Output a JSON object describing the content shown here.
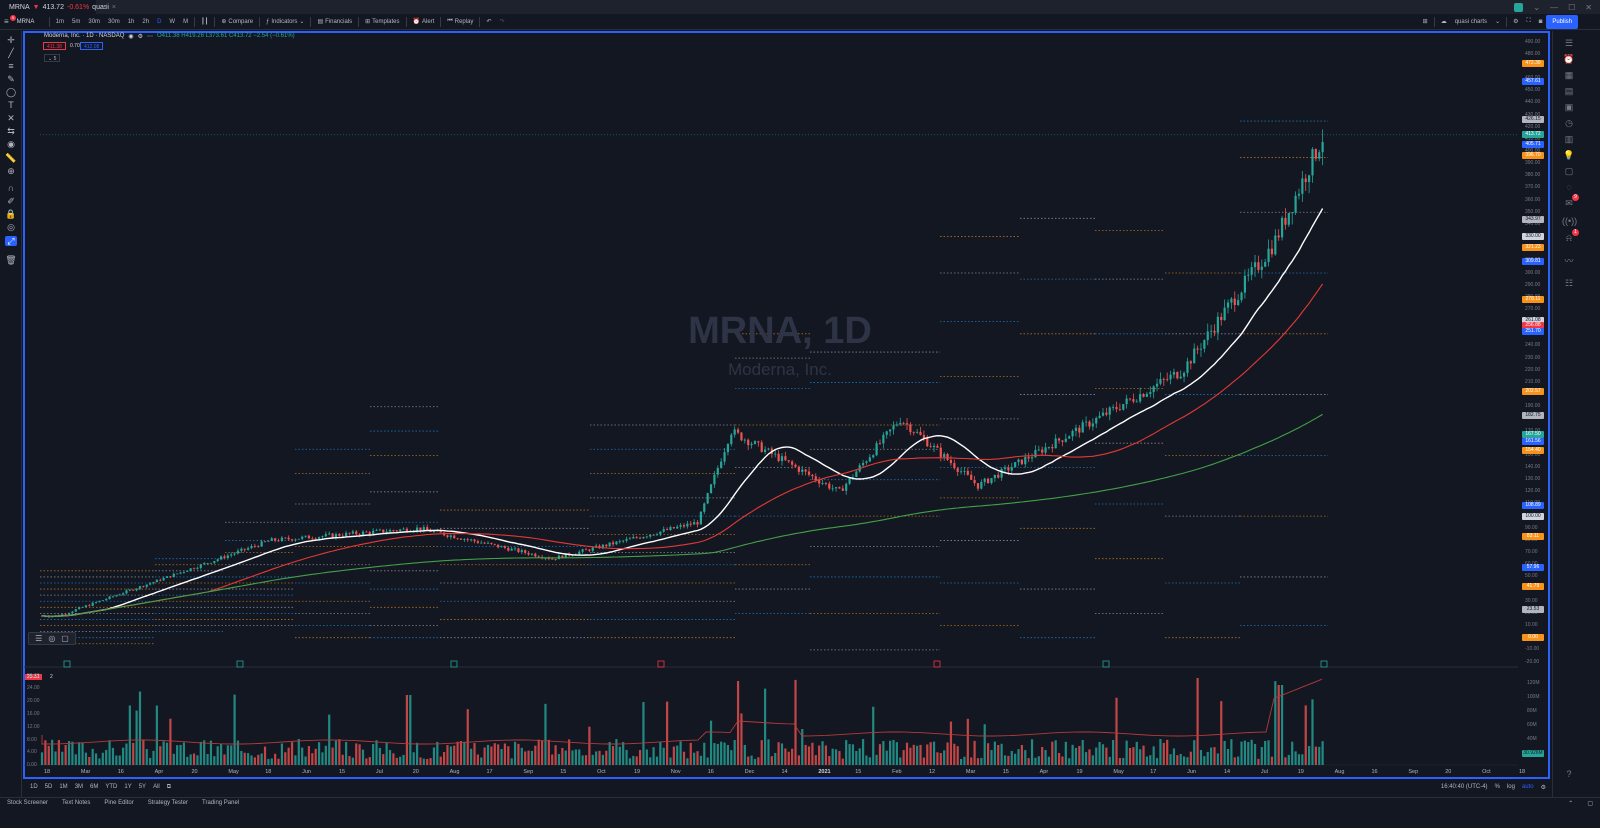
{
  "browser": {
    "tab_symbol": "MRNA",
    "tab_price": "413.72",
    "tab_change": "-0.61%",
    "tab_rest": "quasi",
    "new_tab": "+"
  },
  "toolbar": {
    "symbol": "MRNA",
    "intervals": [
      "1m",
      "5m",
      "30m",
      "30m",
      "1h",
      "2h",
      "D",
      "W",
      "M"
    ],
    "active_interval": "D",
    "compare": "Compare",
    "indicators": "Indicators",
    "financials": "Financials",
    "templates": "Templates",
    "alert": "Alert",
    "replay": "Replay",
    "layout_name": "quasi charts",
    "publish": "Publish"
  },
  "legend": {
    "title": "Moderna, Inc. · 1D · NASDAQ",
    "ohlc": "O411.38 H419.26 L373.61 C413.72 −2.54 (−0.61%)",
    "sell_price": "411.38",
    "spread": "0.70",
    "buy_price": "412.08",
    "sub": "5"
  },
  "watermark": {
    "symbol_interval": "MRNA, 1D",
    "company": "Moderna, Inc."
  },
  "price_axis": {
    "labels": [
      "490.00",
      "480.00",
      "470.00",
      "460.00",
      "450.00",
      "440.00",
      "430.00",
      "420.00",
      "410.00",
      "400.00",
      "390.00",
      "380.00",
      "370.00",
      "360.00",
      "350.00",
      "340.00",
      "330.00",
      "320.00",
      "310.00",
      "300.00",
      "290.00",
      "280.00",
      "270.00",
      "260.00",
      "250.00",
      "240.00",
      "230.00",
      "220.00",
      "210.00",
      "200.00",
      "190.00",
      "180.00",
      "170.00",
      "160.00",
      "150.00",
      "140.00",
      "130.00",
      "120.00",
      "110.00",
      "100.00",
      "90.00",
      "80.00",
      "70.00",
      "60.00",
      "50.00",
      "40.00",
      "30.00",
      "20.00",
      "10.00",
      "0.00",
      "-10.00",
      "-20.00"
    ],
    "tags": [
      {
        "text": "472.39",
        "color": "#f7931a",
        "price": 472.39
      },
      {
        "text": "457.61",
        "color": "#2962ff",
        "price": 457.61
      },
      {
        "text": "426.15",
        "color": "#b2b5be",
        "price": 426.15
      },
      {
        "text": "413.72",
        "color": "#26a69a",
        "price": 413.72
      },
      {
        "text": "405.71",
        "color": "#2962ff",
        "price": 405.71
      },
      {
        "text": "396.70",
        "color": "#f7931a",
        "price": 396.7
      },
      {
        "text": "343.97",
        "color": "#b2b5be",
        "price": 343.97
      },
      {
        "text": "330.00",
        "color": "#d1d4dc",
        "price": 330
      },
      {
        "text": "321.23",
        "color": "#f7931a",
        "price": 321.23
      },
      {
        "text": "309.81",
        "color": "#2962ff",
        "price": 309.81
      },
      {
        "text": "278.11",
        "color": "#f7931a",
        "price": 278.11
      },
      {
        "text": "261.08",
        "color": "#d1d4dc",
        "price": 261.08
      },
      {
        "text": "256.88",
        "color": "#f23645",
        "price": 256.88
      },
      {
        "text": "251.70",
        "color": "#2962ff",
        "price": 251.7
      },
      {
        "text": "202.57",
        "color": "#f7931a",
        "price": 202.57
      },
      {
        "text": "182.75",
        "color": "#b2b5be",
        "price": 182.75
      },
      {
        "text": "167.50",
        "color": "#26a69a",
        "price": 167.5
      },
      {
        "text": "161.56",
        "color": "#2962ff",
        "price": 161.56
      },
      {
        "text": "154.40",
        "color": "#f7931a",
        "price": 154.4
      },
      {
        "text": "108.89",
        "color": "#2962ff",
        "price": 108.89
      },
      {
        "text": "100.00",
        "color": "#d1d4dc",
        "price": 100
      },
      {
        "text": "83.11",
        "color": "#f7931a",
        "price": 83.11
      },
      {
        "text": "57.96",
        "color": "#2962ff",
        "price": 57.96
      },
      {
        "text": "41.79",
        "color": "#f7931a",
        "price": 41.79
      },
      {
        "text": "23.53",
        "color": "#b2b5be",
        "price": 23.53
      },
      {
        "text": "0.00",
        "color": "#f7931a",
        "price": 0
      }
    ]
  },
  "volume_axis": {
    "left_labels": [
      "28.00",
      "24.00",
      "20.00",
      "16.00",
      "12.00",
      "8.00",
      "4.00",
      "0.00"
    ],
    "right_labels": [
      "120M",
      "100M",
      "80M",
      "60M",
      "40M",
      "20M"
    ],
    "current_volume": "25.31",
    "right_tag": "30.926M",
    "pane_count": "2"
  },
  "time_axis": {
    "labels": [
      "18",
      "Mar",
      "16",
      "Apr",
      "20",
      "May",
      "18",
      "Jun",
      "15",
      "Jul",
      "20",
      "Aug",
      "17",
      "Sep",
      "15",
      "Oct",
      "19",
      "Nov",
      "16",
      "Dec",
      "14",
      "2021",
      "15",
      "Feb",
      "12",
      "Mar",
      "15",
      "Apr",
      "19",
      "May",
      "17",
      "Jun",
      "14",
      "Jul",
      "19",
      "Aug",
      "16",
      "Sep",
      "20",
      "Oct",
      "18"
    ]
  },
  "range_bar": {
    "ranges": [
      "1D",
      "5D",
      "1M",
      "3M",
      "6M",
      "YTD",
      "1Y",
      "5Y",
      "All"
    ],
    "clock": "16:40:40 (UTC-4)",
    "pct": "%",
    "log": "log",
    "auto": "auto"
  },
  "bottom_panel": {
    "tabs": [
      "Stock Screener",
      "Text Notes",
      "Pine Editor",
      "Strategy Tester",
      "Trading Panel"
    ]
  },
  "colors": {
    "up": "#26a69a",
    "down": "#ef5350",
    "ma_fast": "#ffffff",
    "ma_mid": "#e53935",
    "ma_slow": "#43a047",
    "pivot_orange": "#f7931a",
    "pivot_blue": "#2196f3",
    "pivot_white": "#b2b5be",
    "frame": "#2962ff"
  },
  "chart_data": {
    "type": "candlestick",
    "ylim": [
      -20,
      495
    ],
    "key_closes": [
      {
        "date": "2020-02-18",
        "close": 18
      },
      {
        "date": "2020-05-18",
        "close": 80
      },
      {
        "date": "2020-07-20",
        "close": 90
      },
      {
        "date": "2020-09-15",
        "close": 65
      },
      {
        "date": "2020-11-16",
        "close": 95
      },
      {
        "date": "2020-11-30",
        "close": 170
      },
      {
        "date": "2021-01-15",
        "close": 120
      },
      {
        "date": "2021-02-10",
        "close": 180
      },
      {
        "date": "2021-03-15",
        "close": 125
      },
      {
        "date": "2021-04-30",
        "close": 175
      },
      {
        "date": "2021-06-10",
        "close": 220
      },
      {
        "date": "2021-07-19",
        "close": 325
      },
      {
        "date": "2021-08-09",
        "close": 413.72
      }
    ]
  }
}
